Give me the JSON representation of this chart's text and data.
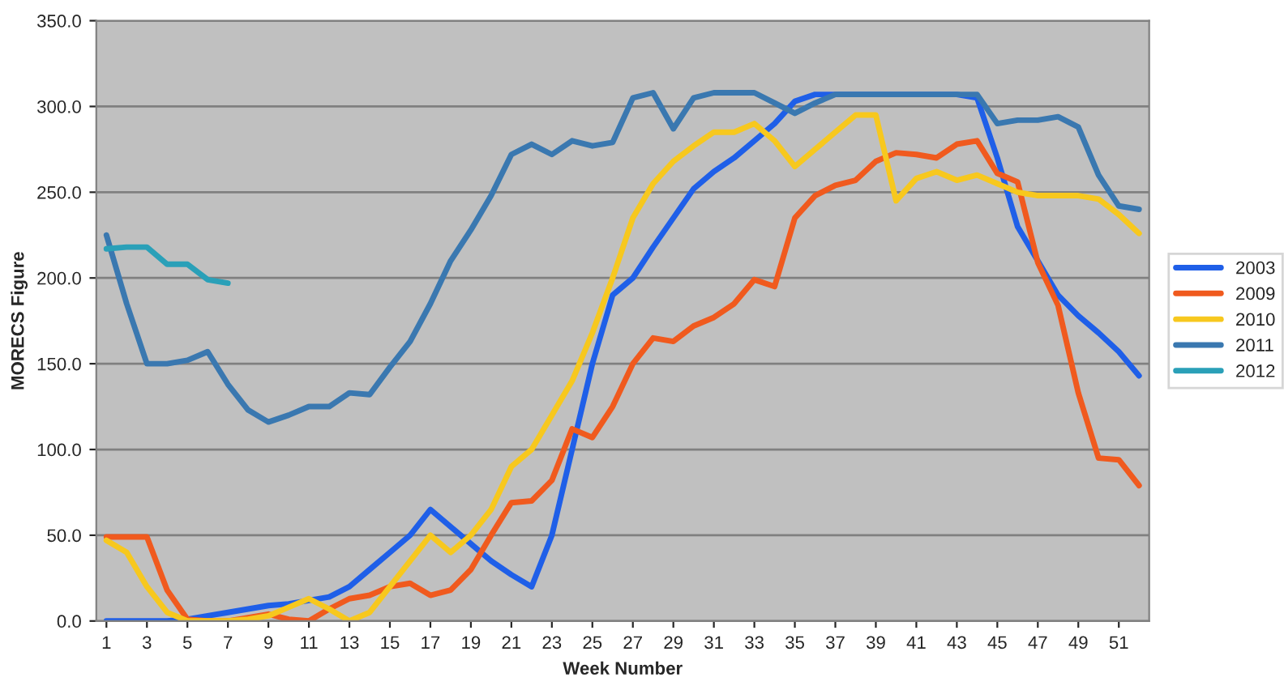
{
  "chart_data": {
    "type": "line",
    "xlabel": "Week Number",
    "ylabel": "MORECS Figure",
    "x": [
      1,
      2,
      3,
      4,
      5,
      6,
      7,
      8,
      9,
      10,
      11,
      12,
      13,
      14,
      15,
      16,
      17,
      18,
      19,
      20,
      21,
      22,
      23,
      24,
      25,
      26,
      27,
      28,
      29,
      30,
      31,
      32,
      33,
      34,
      35,
      36,
      37,
      38,
      39,
      40,
      41,
      42,
      43,
      44,
      45,
      46,
      47,
      48,
      49,
      50,
      51,
      52
    ],
    "xlim": [
      0.5,
      52.5
    ],
    "xticks": [
      1,
      3,
      5,
      7,
      9,
      11,
      13,
      15,
      17,
      19,
      21,
      23,
      25,
      27,
      29,
      31,
      33,
      35,
      37,
      39,
      41,
      43,
      45,
      47,
      49,
      51
    ],
    "ylim": [
      0,
      350
    ],
    "yticks": [
      {
        "value": 0,
        "label": "0.0"
      },
      {
        "value": 50,
        "label": "50.0"
      },
      {
        "value": 100,
        "label": "100.0"
      },
      {
        "value": 150,
        "label": "150.0"
      },
      {
        "value": 200,
        "label": "200.0"
      },
      {
        "value": 250,
        "label": "250.0"
      },
      {
        "value": 300,
        "label": "300.0"
      },
      {
        "value": 350,
        "label": "350.0"
      }
    ],
    "grid": "y",
    "legend": "right",
    "marker": "none",
    "line_style": "solid",
    "series": [
      {
        "name": "2003",
        "color": "#1f5fe8",
        "values": [
          0,
          0,
          0,
          0,
          1,
          3,
          5,
          7,
          9,
          10,
          12,
          14,
          20,
          30,
          40,
          50,
          65,
          55,
          45,
          35,
          27,
          20,
          50,
          100,
          150,
          190,
          200,
          218,
          235,
          252,
          262,
          270,
          280,
          290,
          303,
          307,
          307,
          307,
          307,
          307,
          307,
          307,
          307,
          305,
          270,
          230,
          210,
          190,
          178,
          168,
          157,
          143
        ]
      },
      {
        "name": "2009",
        "color": "#f05a1e",
        "values": [
          49,
          49,
          49,
          18,
          1,
          0,
          0,
          2,
          4,
          1,
          0,
          7,
          13,
          15,
          20,
          22,
          15,
          18,
          30,
          50,
          69,
          70,
          82,
          112,
          107,
          125,
          150,
          165,
          163,
          172,
          177,
          185,
          199,
          195,
          235,
          248,
          254,
          257,
          268,
          273,
          272,
          270,
          278,
          280,
          261,
          256,
          209,
          184,
          133,
          95,
          94,
          79
        ]
      },
      {
        "name": "2010",
        "color": "#f7c81e",
        "values": [
          47,
          40,
          20,
          5,
          0,
          0,
          0,
          1,
          3,
          8,
          13,
          7,
          0,
          5,
          20,
          35,
          50,
          40,
          50,
          65,
          90,
          100,
          120,
          140,
          168,
          200,
          235,
          255,
          268,
          277,
          285,
          285,
          290,
          280,
          265,
          275,
          285,
          295,
          295,
          245,
          258,
          262,
          257,
          260,
          255,
          250,
          248,
          248,
          248,
          246,
          237,
          226
        ]
      },
      {
        "name": "2011",
        "color": "#3a78b0",
        "values": [
          225,
          185,
          150,
          150,
          152,
          157,
          138,
          123,
          116,
          120,
          125,
          125,
          133,
          132,
          148,
          163,
          185,
          210,
          228,
          248,
          272,
          278,
          272,
          280,
          277,
          279,
          305,
          308,
          287,
          305,
          308,
          308,
          308,
          302,
          296,
          302,
          307,
          307,
          307,
          307,
          307,
          307,
          307,
          307,
          290,
          292,
          292,
          294,
          288,
          260,
          242,
          240
        ]
      },
      {
        "name": "2012",
        "color": "#2aa0b8",
        "values": [
          217,
          218,
          218,
          208,
          208,
          199,
          197,
          null,
          null,
          null,
          null,
          null,
          null,
          null,
          null,
          null,
          null,
          null,
          null,
          null,
          null,
          null,
          null,
          null,
          null,
          null,
          null,
          null,
          null,
          null,
          null,
          null,
          null,
          null,
          null,
          null,
          null,
          null,
          null,
          null,
          null,
          null,
          null,
          null,
          null,
          null,
          null,
          null,
          null,
          null,
          null,
          null
        ]
      }
    ]
  }
}
